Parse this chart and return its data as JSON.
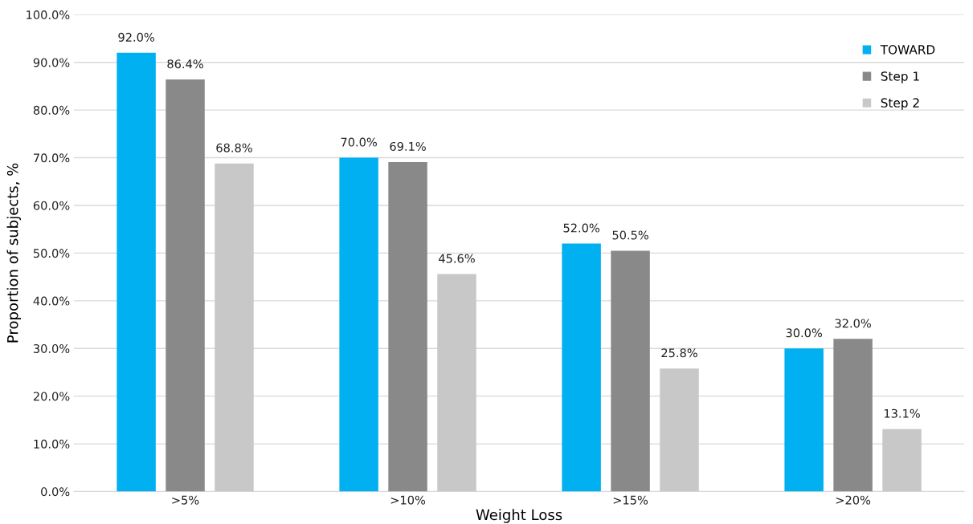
{
  "chart_data": {
    "type": "bar",
    "xlabel": "Weight Loss",
    "ylabel": "Proportion of subjects, %",
    "categories": [
      ">5%",
      ">10%",
      ">15%",
      ">20%"
    ],
    "series": [
      {
        "name": "TOWARD",
        "color": "#00b0f0",
        "values": [
          92.0,
          70.0,
          52.0,
          30.0
        ],
        "value_labels": [
          "92.0%",
          "70.0%",
          "52.0%",
          "30.0%"
        ]
      },
      {
        "name": "Step 1",
        "color": "#898989",
        "values": [
          86.4,
          69.1,
          50.5,
          32.0
        ],
        "value_labels": [
          "86.4%",
          "69.1%",
          "50.5%",
          "32.0%"
        ]
      },
      {
        "name": "Step 2",
        "color": "#c8c8c8",
        "values": [
          68.8,
          45.6,
          25.8,
          13.1
        ],
        "value_labels": [
          "68.8%",
          "45.6%",
          "25.8%",
          "13.1%"
        ]
      }
    ],
    "ylim": [
      0,
      100
    ],
    "yticks": [
      {
        "value": 0,
        "label": "0.0%"
      },
      {
        "value": 10,
        "label": "10.0%"
      },
      {
        "value": 20,
        "label": "20.0%"
      },
      {
        "value": 30,
        "label": "30.0%"
      },
      {
        "value": 40,
        "label": "40.0%"
      },
      {
        "value": 50,
        "label": "50.0%"
      },
      {
        "value": 60,
        "label": "60.0%"
      },
      {
        "value": 70,
        "label": "70.0%"
      },
      {
        "value": 80,
        "label": "80.0%"
      },
      {
        "value": 90,
        "label": "90.0%"
      },
      {
        "value": 100,
        "label": "100.0%"
      }
    ],
    "grid": "y",
    "legend": "top right"
  }
}
